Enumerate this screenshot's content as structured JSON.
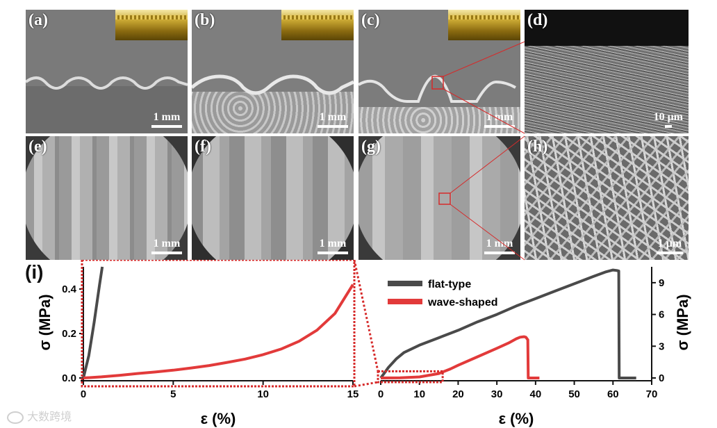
{
  "panels": {
    "a": {
      "label": "(a)",
      "scale": "1 mm"
    },
    "b": {
      "label": "(b)",
      "scale": "1 mm"
    },
    "c": {
      "label": "(c)",
      "scale": "1 mm"
    },
    "d": {
      "label": "(d)",
      "scale": "10 μm"
    },
    "e": {
      "label": "(e)",
      "scale": "1 mm"
    },
    "f": {
      "label": "(f)",
      "scale": "1 mm"
    },
    "g": {
      "label": "(g)",
      "scale": "1 mm"
    },
    "h": {
      "label": "(h)",
      "scale": "1 μm"
    }
  },
  "panel_i_label": "(i)",
  "watermark": "大数跨境",
  "chart_data": [
    {
      "type": "line",
      "xlabel": "ε (%)",
      "ylabel": "σ (MPa)",
      "xlim": [
        0,
        15
      ],
      "ylim": [
        0,
        0.5
      ],
      "xticks": [
        "0",
        "5",
        "10",
        "15"
      ],
      "yticks": [
        "0.0",
        "0.2",
        "0.4"
      ],
      "series": [
        {
          "key": "flat",
          "color": "#4a4a4a",
          "x": [
            0,
            0.3,
            0.6,
            0.9,
            1.05
          ],
          "y": [
            0,
            0.1,
            0.25,
            0.42,
            0.5
          ]
        },
        {
          "key": "wave",
          "color": "#e23a3a",
          "x": [
            0,
            1,
            2,
            3,
            4,
            5,
            6,
            7,
            8,
            9,
            10,
            11,
            12,
            13,
            14,
            15
          ],
          "y": [
            0.0,
            0.005,
            0.012,
            0.02,
            0.027,
            0.035,
            0.045,
            0.056,
            0.07,
            0.085,
            0.105,
            0.13,
            0.165,
            0.215,
            0.29,
            0.42
          ]
        }
      ]
    },
    {
      "type": "line",
      "xlabel": "ε (%)",
      "ylabel": "σ (MPa)",
      "xlim": [
        0,
        70
      ],
      "ylim": [
        0,
        10.5
      ],
      "xticks": [
        "0",
        "10",
        "20",
        "30",
        "40",
        "50",
        "60",
        "70"
      ],
      "yticks": [
        "0",
        "3",
        "6",
        "9"
      ],
      "series": [
        {
          "name": "flat-type",
          "color": "#4a4a4a",
          "x": [
            0,
            1,
            2,
            4,
            6,
            10,
            15,
            20,
            25,
            30,
            35,
            40,
            45,
            50,
            55,
            58,
            60,
            61,
            61.5,
            61.6,
            62,
            66
          ],
          "y": [
            0,
            0.5,
            1.0,
            1.8,
            2.4,
            3.1,
            3.8,
            4.5,
            5.3,
            6.0,
            6.8,
            7.5,
            8.2,
            8.9,
            9.6,
            10.0,
            10.2,
            10.15,
            10.1,
            0,
            0,
            0
          ]
        },
        {
          "name": "wave-shaped",
          "color": "#e23a3a",
          "x": [
            0,
            5,
            10,
            15,
            18,
            20,
            25,
            30,
            33,
            35,
            36,
            37,
            37.5,
            38,
            38.1,
            39,
            41
          ],
          "y": [
            0,
            0.02,
            0.1,
            0.42,
            0.85,
            1.2,
            2.0,
            2.8,
            3.3,
            3.7,
            3.85,
            3.9,
            3.85,
            3.6,
            0,
            0,
            0
          ]
        }
      ]
    }
  ]
}
